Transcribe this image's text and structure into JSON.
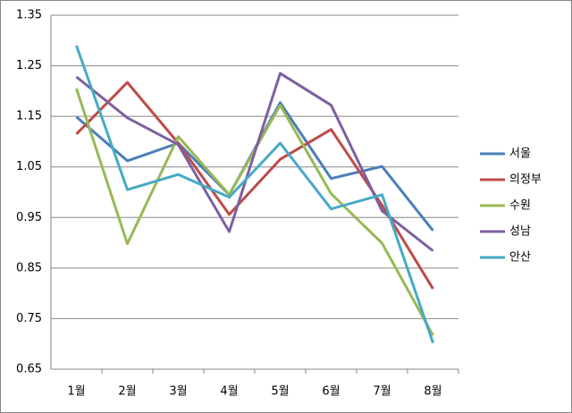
{
  "chart_data": {
    "type": "line",
    "categories": [
      "1월",
      "2월",
      "3월",
      "4월",
      "5월",
      "6월",
      "7월",
      "8월"
    ],
    "series": [
      {
        "name": "서울",
        "color": "#4a7ebb",
        "values": [
          1.149,
          1.062,
          1.097,
          0.995,
          1.177,
          1.027,
          1.051,
          0.924
        ]
      },
      {
        "name": "의정부",
        "color": "#be4b48",
        "values": [
          1.115,
          1.217,
          1.097,
          0.956,
          1.065,
          1.124,
          0.974,
          0.809
        ]
      },
      {
        "name": "수원",
        "color": "#98b954",
        "values": [
          1.205,
          0.898,
          1.11,
          0.995,
          1.172,
          0.997,
          0.899,
          0.717
        ]
      },
      {
        "name": "성남",
        "color": "#7d60a0",
        "values": [
          1.228,
          1.147,
          1.094,
          0.922,
          1.235,
          1.172,
          0.963,
          0.884
        ]
      },
      {
        "name": "안산",
        "color": "#46aac5",
        "values": [
          1.29,
          1.005,
          1.035,
          0.99,
          1.097,
          0.967,
          0.995,
          0.702
        ]
      }
    ],
    "ylim": [
      0.65,
      1.35
    ],
    "yticks": [
      0.65,
      0.75,
      0.85,
      0.95,
      1.05,
      1.15,
      1.25,
      1.35
    ],
    "grid": true,
    "legend": "right"
  }
}
